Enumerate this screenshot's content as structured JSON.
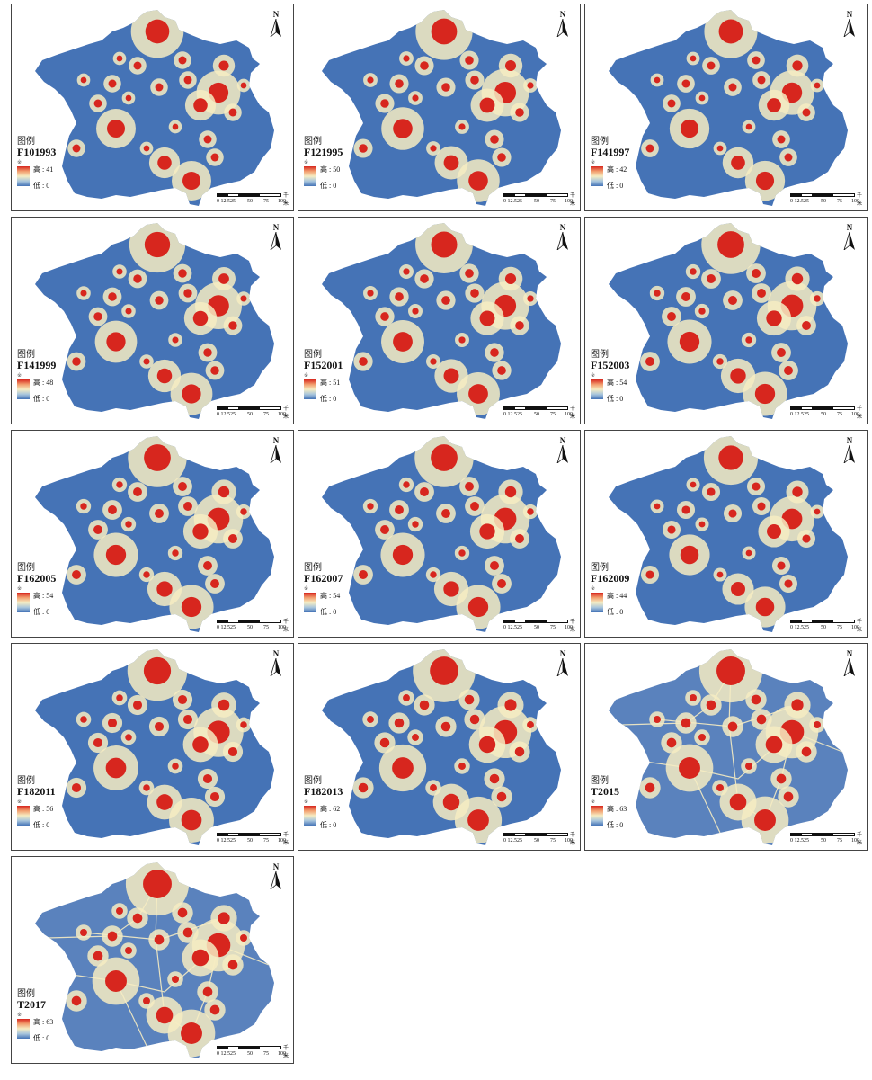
{
  "legend_title": "图例",
  "legend_dot": "※",
  "high_prefix": "高 : ",
  "low_label": "低 : 0",
  "north_label": "N",
  "scale_unit": "千米",
  "scale_ticks": [
    "0 12.525",
    "50",
    "75",
    "100"
  ],
  "colors": {
    "low": "#4573b6",
    "mid": "#f6ecc2",
    "high": "#d7261e"
  },
  "panels": [
    {
      "code": "F101993",
      "high": "41"
    },
    {
      "code": "F121995",
      "high": "50"
    },
    {
      "code": "F141997",
      "high": "42"
    },
    {
      "code": "F141999",
      "high": "48"
    },
    {
      "code": "F152001",
      "high": "51"
    },
    {
      "code": "F152003",
      "high": "54"
    },
    {
      "code": "F162005",
      "high": "54"
    },
    {
      "code": "F162007",
      "high": "54"
    },
    {
      "code": "F162009",
      "high": "44"
    },
    {
      "code": "F182011",
      "high": "56"
    },
    {
      "code": "F182013",
      "high": "62"
    },
    {
      "code": "T2015",
      "high": "63"
    },
    {
      "code": "T2017",
      "high": "63"
    }
  ]
}
